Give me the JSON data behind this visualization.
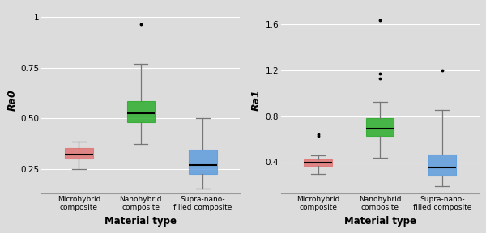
{
  "plot1": {
    "ylabel": "Ra0",
    "xlabel": "Material type",
    "ylim": [
      0.13,
      1.05
    ],
    "yticks": [
      0.25,
      0.5,
      0.75,
      1.0
    ],
    "yticklabels": [
      "0.25",
      "0.50",
      "0.75",
      "1"
    ],
    "categories": [
      "Microhybrid\ncomposite",
      "Nanohybrid\ncomposite",
      "Supra-nano-\nfilled composite"
    ],
    "boxes": [
      {
        "q1": 0.3,
        "median": 0.32,
        "q3": 0.355,
        "whislo": 0.25,
        "whishi": 0.385,
        "fliers": [],
        "color": "#E07070"
      },
      {
        "q1": 0.48,
        "median": 0.525,
        "q3": 0.585,
        "whislo": 0.375,
        "whishi": 0.77,
        "fliers": [
          0.965
        ],
        "color": "#22AA22"
      },
      {
        "q1": 0.225,
        "median": 0.27,
        "q3": 0.345,
        "whislo": 0.155,
        "whishi": 0.5,
        "fliers": [],
        "color": "#5599DD"
      }
    ],
    "background_color": "#DCDCDC",
    "grid_color": "#FFFFFF"
  },
  "plot2": {
    "ylabel": "Ra1",
    "xlabel": "Material type",
    "ylim": [
      0.13,
      1.75
    ],
    "yticks": [
      0.4,
      0.8,
      1.2,
      1.6
    ],
    "yticklabels": [
      "0.4",
      "0.8",
      "1.2",
      "1.6"
    ],
    "categories": [
      "Microhybrid\ncomposite",
      "Nanohybrid\ncomposite",
      "Supra-nano-\nfilled composite"
    ],
    "boxes": [
      {
        "q1": 0.37,
        "median": 0.4,
        "q3": 0.425,
        "whislo": 0.3,
        "whishi": 0.46,
        "fliers": [
          0.63,
          0.645
        ],
        "color": "#E07070"
      },
      {
        "q1": 0.63,
        "median": 0.695,
        "q3": 0.78,
        "whislo": 0.44,
        "whishi": 0.92,
        "fliers": [
          1.13,
          1.17,
          1.63
        ],
        "color": "#22AA22"
      },
      {
        "q1": 0.285,
        "median": 0.355,
        "q3": 0.465,
        "whislo": 0.195,
        "whishi": 0.85,
        "fliers": [
          1.2
        ],
        "color": "#5599DD"
      }
    ],
    "background_color": "#DCDCDC",
    "grid_color": "#FFFFFF"
  }
}
